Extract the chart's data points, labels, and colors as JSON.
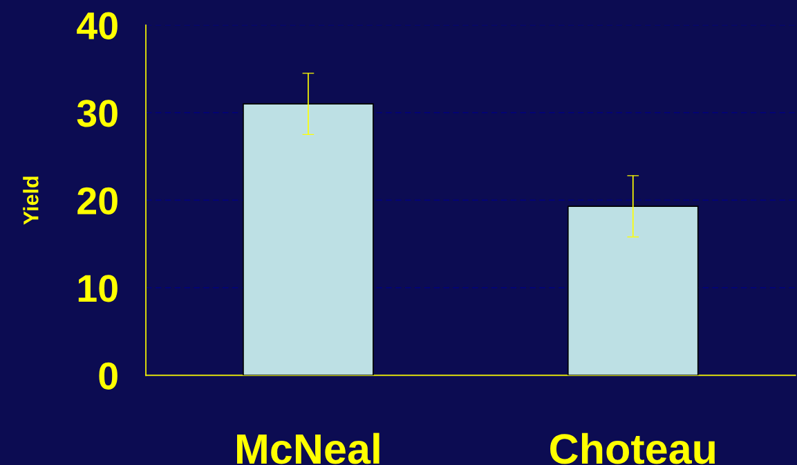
{
  "chart_data": {
    "type": "bar",
    "ylabel": "Yield",
    "categories": [
      "McNeal",
      "Choteau"
    ],
    "values": [
      31,
      19.3
    ],
    "errors": [
      3.5,
      3.5
    ],
    "color": "#bde0e4",
    "ylim": [
      0,
      40
    ],
    "yticks": [
      0,
      10,
      20,
      30,
      40
    ],
    "grid": "y"
  }
}
